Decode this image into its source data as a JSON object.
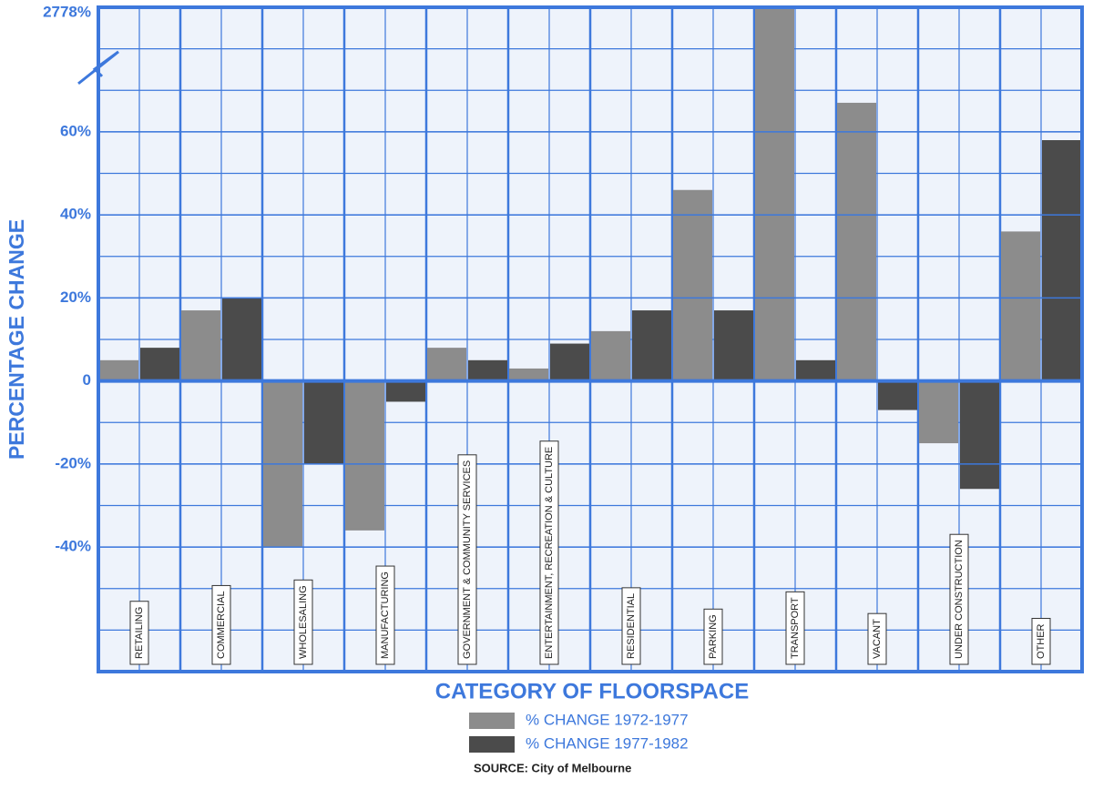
{
  "chart_data": {
    "type": "bar",
    "title": "CATEGORY OF FLOORSPACE",
    "y_label": "PERCENTAGE CHANGE",
    "source": "SOURCE: City of Melbourne",
    "categories": [
      "RETAILING",
      "COMMERCIAL",
      "WHOLESALING",
      "MANUFACTURING",
      "GOVERNMENT & COMMUNITY SERVICES",
      "ENTERTAINMENT, RECREATION & CULTURE",
      "RESIDENTIAL",
      "PARKING",
      "TRANSPORT",
      "VACANT",
      "UNDER CONSTRUCTION",
      "OTHER"
    ],
    "series": [
      {
        "name": "% CHANGE 1972-1977",
        "color": "#8c8c8c",
        "values": [
          5,
          17,
          -40,
          -36,
          8,
          3,
          12,
          46,
          2778,
          67,
          -15,
          36
        ]
      },
      {
        "name": "% CHANGE 1977-1982",
        "color": "#4b4b4b",
        "values": [
          8,
          20,
          -20,
          -5,
          5,
          9,
          17,
          17,
          5,
          -7,
          -26,
          58
        ]
      }
    ],
    "ylim": [
      -70,
      2778
    ],
    "ybreak": [
      76,
      2764
    ],
    "yticks": [
      {
        "value": -40,
        "label": "-40%"
      },
      {
        "value": -20,
        "label": "-20%"
      },
      {
        "value": 0,
        "label": "0"
      },
      {
        "value": 20,
        "label": "20%"
      },
      {
        "value": 40,
        "label": "40%"
      },
      {
        "value": 60,
        "label": "60%"
      },
      {
        "value": 2778,
        "label": "2778%"
      }
    ],
    "grid": true,
    "grid_color": "#3d78dc"
  }
}
